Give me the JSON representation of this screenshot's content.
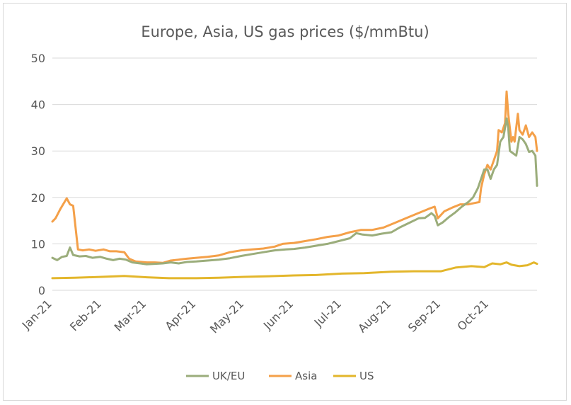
{
  "chart_data": {
    "type": "line",
    "title": "Europe, Asia, US gas prices ($/mmBtu)",
    "xlabel": "",
    "ylabel": "",
    "ylim": [
      0,
      50
    ],
    "yticks": [
      0,
      10,
      20,
      30,
      40,
      50
    ],
    "xlim": [
      "2021-01-01",
      "2021-10-31"
    ],
    "xtick_labels": [
      "Jan-21",
      "Feb-21",
      "Mar-21",
      "Apr-21",
      "May-21",
      "Jun-21",
      "Jul-21",
      "Aug-21",
      "Sep-21",
      "Oct-21"
    ],
    "xtick_dates": [
      "2021-01-01",
      "2021-02-01",
      "2021-03-01",
      "2021-04-01",
      "2021-05-01",
      "2021-06-01",
      "2021-07-01",
      "2021-08-01",
      "2021-09-01",
      "2021-10-01"
    ],
    "grid": "horizontal",
    "legend": "bottom",
    "series": [
      {
        "name": "UK/EU",
        "color": "#9bad7b",
        "points": [
          [
            "2021-01-01",
            7.0
          ],
          [
            "2021-01-04",
            6.5
          ],
          [
            "2021-01-07",
            7.2
          ],
          [
            "2021-01-10",
            7.4
          ],
          [
            "2021-01-12",
            9.2
          ],
          [
            "2021-01-14",
            7.6
          ],
          [
            "2021-01-18",
            7.3
          ],
          [
            "2021-01-22",
            7.4
          ],
          [
            "2021-01-26",
            7.0
          ],
          [
            "2021-01-31",
            7.2
          ],
          [
            "2021-02-04",
            6.8
          ],
          [
            "2021-02-08",
            6.5
          ],
          [
            "2021-02-12",
            6.8
          ],
          [
            "2021-02-16",
            6.6
          ],
          [
            "2021-02-20",
            6.0
          ],
          [
            "2021-02-25",
            5.8
          ],
          [
            "2021-03-01",
            5.6
          ],
          [
            "2021-03-06",
            5.7
          ],
          [
            "2021-03-11",
            5.8
          ],
          [
            "2021-03-16",
            6.0
          ],
          [
            "2021-03-21",
            5.8
          ],
          [
            "2021-03-26",
            6.1
          ],
          [
            "2021-04-01",
            6.2
          ],
          [
            "2021-04-08",
            6.4
          ],
          [
            "2021-04-15",
            6.6
          ],
          [
            "2021-04-22",
            6.9
          ],
          [
            "2021-04-29",
            7.4
          ],
          [
            "2021-05-06",
            7.8
          ],
          [
            "2021-05-13",
            8.2
          ],
          [
            "2021-05-20",
            8.6
          ],
          [
            "2021-05-27",
            8.8
          ],
          [
            "2021-06-01",
            8.9
          ],
          [
            "2021-06-08",
            9.2
          ],
          [
            "2021-06-15",
            9.6
          ],
          [
            "2021-06-22",
            10.0
          ],
          [
            "2021-06-29",
            10.6
          ],
          [
            "2021-07-06",
            11.2
          ],
          [
            "2021-07-10",
            12.3
          ],
          [
            "2021-07-14",
            12.0
          ],
          [
            "2021-07-20",
            11.8
          ],
          [
            "2021-07-26",
            12.2
          ],
          [
            "2021-08-01",
            12.5
          ],
          [
            "2021-08-06",
            13.5
          ],
          [
            "2021-08-12",
            14.5
          ],
          [
            "2021-08-18",
            15.5
          ],
          [
            "2021-08-22",
            15.6
          ],
          [
            "2021-08-26",
            16.6
          ],
          [
            "2021-08-28",
            16.0
          ],
          [
            "2021-08-30",
            14.0
          ],
          [
            "2021-09-02",
            14.6
          ],
          [
            "2021-09-06",
            15.8
          ],
          [
            "2021-09-10",
            16.8
          ],
          [
            "2021-09-14",
            18.0
          ],
          [
            "2021-09-18",
            19.0
          ],
          [
            "2021-09-21",
            20.0
          ],
          [
            "2021-09-24",
            22.0
          ],
          [
            "2021-09-26",
            24.0
          ],
          [
            "2021-09-28",
            26.0
          ],
          [
            "2021-09-30",
            26.0
          ],
          [
            "2021-10-02",
            24.0
          ],
          [
            "2021-10-04",
            26.0
          ],
          [
            "2021-10-06",
            27.0
          ],
          [
            "2021-10-08",
            32.0
          ],
          [
            "2021-10-10",
            33.0
          ],
          [
            "2021-10-11",
            35.0
          ],
          [
            "2021-10-12",
            37.0
          ],
          [
            "2021-10-13",
            35.0
          ],
          [
            "2021-10-14",
            30.0
          ],
          [
            "2021-10-16",
            29.5
          ],
          [
            "2021-10-18",
            29.0
          ],
          [
            "2021-10-20",
            33.0
          ],
          [
            "2021-10-22",
            32.5
          ],
          [
            "2021-10-24",
            31.5
          ],
          [
            "2021-10-26",
            29.8
          ],
          [
            "2021-10-28",
            30.0
          ],
          [
            "2021-10-30",
            29.0
          ],
          [
            "2021-10-31",
            22.5
          ]
        ]
      },
      {
        "name": "Asia",
        "color": "#f4a049",
        "points": [
          [
            "2021-01-01",
            14.8
          ],
          [
            "2021-01-03",
            15.5
          ],
          [
            "2021-01-06",
            17.5
          ],
          [
            "2021-01-10",
            19.8
          ],
          [
            "2021-01-12",
            18.5
          ],
          [
            "2021-01-14",
            18.2
          ],
          [
            "2021-01-17",
            8.8
          ],
          [
            "2021-01-20",
            8.6
          ],
          [
            "2021-01-24",
            8.8
          ],
          [
            "2021-01-28",
            8.5
          ],
          [
            "2021-02-02",
            8.8
          ],
          [
            "2021-02-06",
            8.4
          ],
          [
            "2021-02-10",
            8.4
          ],
          [
            "2021-02-15",
            8.2
          ],
          [
            "2021-02-18",
            6.8
          ],
          [
            "2021-02-22",
            6.2
          ],
          [
            "2021-03-01",
            6.0
          ],
          [
            "2021-03-06",
            6.0
          ],
          [
            "2021-03-11",
            5.9
          ],
          [
            "2021-03-16",
            6.4
          ],
          [
            "2021-03-21",
            6.6
          ],
          [
            "2021-03-26",
            6.8
          ],
          [
            "2021-04-01",
            7.0
          ],
          [
            "2021-04-08",
            7.2
          ],
          [
            "2021-04-15",
            7.5
          ],
          [
            "2021-04-22",
            8.2
          ],
          [
            "2021-04-29",
            8.6
          ],
          [
            "2021-05-06",
            8.8
          ],
          [
            "2021-05-13",
            9.0
          ],
          [
            "2021-05-20",
            9.4
          ],
          [
            "2021-05-25",
            10.0
          ],
          [
            "2021-06-01",
            10.2
          ],
          [
            "2021-06-08",
            10.6
          ],
          [
            "2021-06-15",
            11.0
          ],
          [
            "2021-06-22",
            11.5
          ],
          [
            "2021-06-29",
            11.8
          ],
          [
            "2021-07-06",
            12.5
          ],
          [
            "2021-07-13",
            13.0
          ],
          [
            "2021-07-20",
            13.0
          ],
          [
            "2021-07-27",
            13.5
          ],
          [
            "2021-08-03",
            14.5
          ],
          [
            "2021-08-10",
            15.5
          ],
          [
            "2021-08-17",
            16.5
          ],
          [
            "2021-08-24",
            17.5
          ],
          [
            "2021-08-28",
            18.0
          ],
          [
            "2021-08-30",
            15.5
          ],
          [
            "2021-09-03",
            17.0
          ],
          [
            "2021-09-08",
            17.8
          ],
          [
            "2021-09-13",
            18.5
          ],
          [
            "2021-09-18",
            18.5
          ],
          [
            "2021-09-22",
            18.8
          ],
          [
            "2021-09-25",
            19.0
          ],
          [
            "2021-09-26",
            22.0
          ],
          [
            "2021-09-28",
            25.0
          ],
          [
            "2021-09-30",
            27.0
          ],
          [
            "2021-10-02",
            26.0
          ],
          [
            "2021-10-04",
            28.0
          ],
          [
            "2021-10-06",
            30.0
          ],
          [
            "2021-10-07",
            34.5
          ],
          [
            "2021-10-09",
            34.0
          ],
          [
            "2021-10-11",
            36.0
          ],
          [
            "2021-10-12",
            42.8
          ],
          [
            "2021-10-13",
            38.0
          ],
          [
            "2021-10-15",
            32.0
          ],
          [
            "2021-10-16",
            33.0
          ],
          [
            "2021-10-17",
            32.0
          ],
          [
            "2021-10-19",
            38.0
          ],
          [
            "2021-10-20",
            34.5
          ],
          [
            "2021-10-22",
            33.5
          ],
          [
            "2021-10-24",
            35.5
          ],
          [
            "2021-10-26",
            33.0
          ],
          [
            "2021-10-28",
            34.0
          ],
          [
            "2021-10-30",
            33.0
          ],
          [
            "2021-10-31",
            30.0
          ]
        ]
      },
      {
        "name": "US",
        "color": "#e3b62b",
        "points": [
          [
            "2021-01-01",
            2.6
          ],
          [
            "2021-01-15",
            2.7
          ],
          [
            "2021-02-01",
            2.9
          ],
          [
            "2021-02-15",
            3.1
          ],
          [
            "2021-03-01",
            2.8
          ],
          [
            "2021-03-15",
            2.6
          ],
          [
            "2021-04-01",
            2.6
          ],
          [
            "2021-04-15",
            2.7
          ],
          [
            "2021-05-01",
            2.9
          ],
          [
            "2021-05-15",
            3.0
          ],
          [
            "2021-06-01",
            3.2
          ],
          [
            "2021-06-15",
            3.3
          ],
          [
            "2021-07-01",
            3.6
          ],
          [
            "2021-07-15",
            3.7
          ],
          [
            "2021-08-01",
            4.0
          ],
          [
            "2021-08-15",
            4.1
          ],
          [
            "2021-09-01",
            4.1
          ],
          [
            "2021-09-10",
            4.9
          ],
          [
            "2021-09-20",
            5.2
          ],
          [
            "2021-09-28",
            5.0
          ],
          [
            "2021-10-03",
            5.8
          ],
          [
            "2021-10-08",
            5.6
          ],
          [
            "2021-10-12",
            6.0
          ],
          [
            "2021-10-15",
            5.5
          ],
          [
            "2021-10-20",
            5.2
          ],
          [
            "2021-10-25",
            5.4
          ],
          [
            "2021-10-29",
            6.0
          ],
          [
            "2021-10-31",
            5.7
          ]
        ]
      }
    ]
  }
}
